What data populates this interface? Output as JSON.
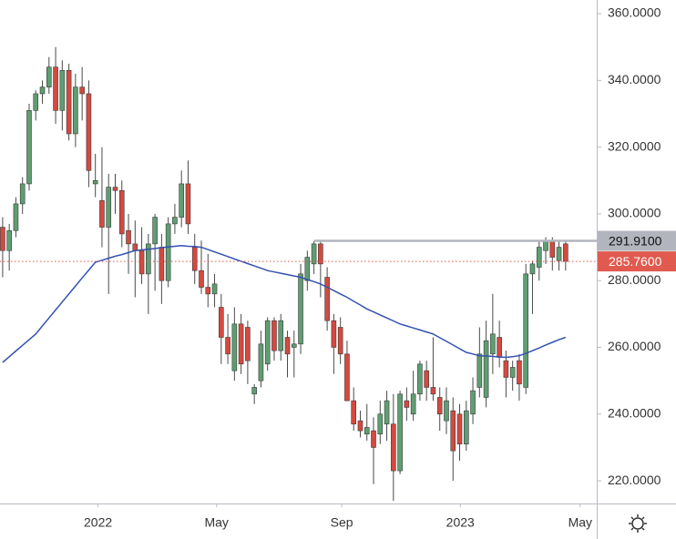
{
  "chart_data": {
    "type": "candlestick",
    "open": [
      296,
      289,
      295,
      303,
      309,
      331,
      336,
      338,
      344,
      331,
      343,
      324,
      338,
      336,
      309,
      304,
      296,
      308,
      307,
      295,
      291,
      289,
      282,
      291,
      290,
      280,
      297,
      299,
      309,
      290,
      283,
      278,
      276,
      272,
      263,
      253,
      267,
      266,
      246,
      250,
      255,
      268,
      259,
      263,
      260,
      261,
      280,
      285,
      291,
      281,
      268,
      266,
      258,
      244,
      238,
      234,
      235,
      234,
      237,
      237,
      223,
      244,
      240,
      246,
      253,
      248,
      245,
      238,
      241,
      240,
      231,
      240,
      248,
      245,
      258,
      263,
      256,
      251,
      256,
      248,
      282,
      284,
      289,
      292,
      286,
      291
    ],
    "high": [
      299,
      297,
      305,
      311,
      333,
      337,
      340,
      347,
      350,
      346,
      345,
      342,
      344,
      340,
      318,
      320,
      312,
      312,
      310,
      300,
      298,
      296,
      294,
      300,
      294,
      299,
      303,
      313,
      316,
      294,
      292,
      288,
      282,
      276,
      270,
      272,
      270,
      268,
      249,
      265,
      269,
      269,
      270,
      265,
      265,
      285,
      289,
      291.91,
      292,
      284,
      270,
      269,
      262,
      248,
      241,
      243,
      239,
      244,
      247,
      246,
      247,
      248,
      253,
      256,
      256,
      263,
      248,
      248,
      245,
      243,
      244,
      251,
      266,
      268,
      276,
      268,
      259,
      256,
      258,
      285,
      286,
      292,
      293,
      293,
      292,
      292
    ],
    "low": [
      281,
      283,
      293,
      300,
      307,
      328,
      333,
      336,
      327,
      325,
      322,
      320,
      328,
      308,
      305,
      290,
      276,
      300,
      290,
      282,
      275,
      279,
      270,
      277,
      273,
      278,
      294,
      296,
      294,
      279,
      276,
      272,
      272,
      255,
      255,
      250,
      252,
      249,
      243,
      248,
      253,
      256,
      256,
      251,
      251,
      258,
      277,
      282,
      275,
      265,
      252,
      255,
      244,
      235,
      233,
      232,
      219,
      231,
      232,
      214,
      222,
      238,
      238,
      244,
      244,
      244,
      235,
      234,
      220,
      226,
      229,
      237,
      245,
      242,
      252,
      254,
      245,
      247,
      244,
      246,
      270,
      280,
      285,
      283,
      283,
      283
    ],
    "close": [
      289,
      295,
      303,
      309,
      331,
      336,
      338,
      344,
      331,
      343,
      324,
      338,
      336,
      313,
      310,
      296,
      308,
      307,
      294,
      291,
      289,
      282,
      291,
      299,
      280,
      297,
      299,
      309,
      297,
      283,
      278,
      276,
      279,
      263,
      258,
      267,
      255,
      256,
      248,
      261,
      268,
      259,
      268,
      258,
      261,
      282,
      287,
      291,
      285,
      268,
      260,
      258,
      244,
      237,
      235,
      236,
      230,
      240,
      244,
      223,
      246,
      242,
      246,
      255,
      248,
      246,
      240,
      244,
      229,
      231,
      241,
      247,
      258,
      262,
      264,
      257,
      251,
      254,
      249,
      282,
      285,
      290,
      292,
      287,
      290,
      285.76
    ],
    "last_price_label": "285.7600",
    "up_color": "#5f9e72",
    "down_color": "#d5493f",
    "last_price_color": "#e05a4f",
    "ma": {
      "color": "#3451b2",
      "values": [
        255.5,
        257.2,
        258.9,
        260.6,
        262.3,
        264,
        266.4,
        268.8,
        271.2,
        273.6,
        276,
        278.4,
        280.8,
        283.1,
        285.5,
        286.1,
        286.7,
        287.3,
        287.8,
        288.4,
        289,
        289.2,
        289.4,
        289.6,
        289.9,
        290.1,
        290.3,
        290.5,
        290.3,
        290.2,
        290,
        289.3,
        288.6,
        287.9,
        287.2,
        286.5,
        285.8,
        285.1,
        284.4,
        283.7,
        283,
        282.6,
        282.2,
        281.8,
        281.4,
        281,
        280.3,
        279.7,
        279,
        278,
        277,
        276,
        275,
        273.8,
        272.7,
        271.5,
        270.6,
        269.7,
        268.8,
        267.9,
        267,
        266.4,
        265.8,
        265.2,
        264.6,
        264,
        262.9,
        261.8,
        260.7,
        259.6,
        258.5,
        258,
        257.5,
        257.4,
        257.3,
        257.1,
        257,
        257.2,
        257.5,
        258.2,
        259,
        259.8,
        260.7,
        261.5,
        262.3,
        263
      ]
    },
    "level": {
      "value": 291.91,
      "label": "291.9100",
      "color": "#b2b5be"
    },
    "ylim": [
      213.2,
      364.1
    ],
    "yticks": [
      {
        "value": 220,
        "label": "220.0000"
      },
      {
        "value": 240,
        "label": "240.0000"
      },
      {
        "value": 260,
        "label": "260.0000"
      },
      {
        "value": 280,
        "label": "280.0000"
      },
      {
        "value": 300,
        "label": "300.0000"
      },
      {
        "value": 320,
        "label": "320.0000"
      },
      {
        "value": 340,
        "label": "340.0000"
      },
      {
        "value": 360,
        "label": "360.0000"
      }
    ],
    "xlim": [
      -0.4,
      89.7
    ],
    "xticks": [
      {
        "value": 14.4,
        "label": "2022"
      },
      {
        "value": 32.3,
        "label": "May"
      },
      {
        "value": 51.2,
        "label": "Sep"
      },
      {
        "value": 69.1,
        "label": "2023"
      },
      {
        "value": 87.2,
        "label": "May"
      }
    ]
  }
}
